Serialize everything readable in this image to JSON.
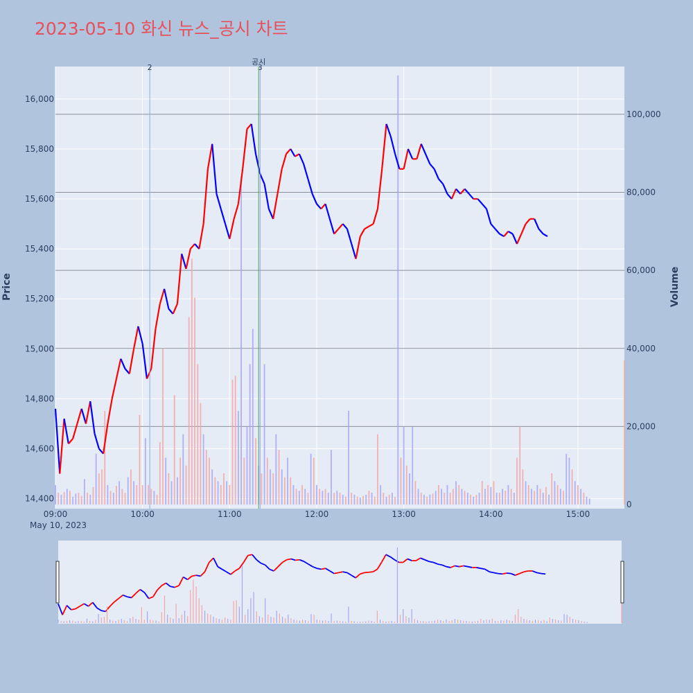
{
  "title": "2023-05-10 화신 뉴스_공시 차트",
  "colors": {
    "background": "#b0c4de",
    "plot_bg": "#e5ecf6",
    "up": "#ff0000",
    "down": "#0000ff",
    "vol_up": "#f4a6a6",
    "vol_down": "#a6a6f4",
    "title": "#e8505b",
    "news_line": "#8fa8e8",
    "disclosure_line": "#5aa05a"
  },
  "chart_data": {
    "type": "candlestick",
    "title": "2023-05-10 화신 뉴스_공시 차트",
    "xlabel": "",
    "ylabel": "Price",
    "y2label": "Volume",
    "date_label": "May 10, 2023",
    "x_ticks": [
      "09:00",
      "10:00",
      "11:00",
      "12:00",
      "13:00",
      "14:00",
      "15:00"
    ],
    "price_ticks": [
      14400,
      14600,
      14800,
      15000,
      15200,
      15400,
      15600,
      15800,
      16000
    ],
    "price_tick_labels": [
      "14,400",
      "14,600",
      "14,800",
      "15,000",
      "15,200",
      "15,400",
      "15,600",
      "15,800",
      "16,000"
    ],
    "volume_ticks": [
      0,
      20000,
      40000,
      60000,
      80000,
      100000
    ],
    "volume_tick_labels": [
      "0",
      "20,000",
      "40,000",
      "60,000",
      "80,000",
      "100,000"
    ],
    "price_range": [
      14360,
      16130
    ],
    "volume_range": [
      0,
      111000
    ],
    "time_range": [
      "09:00",
      "15:32"
    ],
    "grid": true,
    "price_path": [
      [
        "09:00",
        14760
      ],
      [
        "09:03",
        14500
      ],
      [
        "09:06",
        14720
      ],
      [
        "09:09",
        14620
      ],
      [
        "09:12",
        14640
      ],
      [
        "09:15",
        14700
      ],
      [
        "09:18",
        14760
      ],
      [
        "09:21",
        14700
      ],
      [
        "09:24",
        14790
      ],
      [
        "09:27",
        14660
      ],
      [
        "09:30",
        14600
      ],
      [
        "09:33",
        14580
      ],
      [
        "09:36",
        14700
      ],
      [
        "09:39",
        14800
      ],
      [
        "09:42",
        14880
      ],
      [
        "09:45",
        14960
      ],
      [
        "09:48",
        14920
      ],
      [
        "09:51",
        14900
      ],
      [
        "09:54",
        15000
      ],
      [
        "09:57",
        15090
      ],
      [
        "10:00",
        15020
      ],
      [
        "10:03",
        14880
      ],
      [
        "10:06",
        14920
      ],
      [
        "10:09",
        15080
      ],
      [
        "10:12",
        15180
      ],
      [
        "10:15",
        15240
      ],
      [
        "10:18",
        15160
      ],
      [
        "10:21",
        15140
      ],
      [
        "10:24",
        15180
      ],
      [
        "10:27",
        15380
      ],
      [
        "10:30",
        15320
      ],
      [
        "10:33",
        15400
      ],
      [
        "10:36",
        15420
      ],
      [
        "10:39",
        15400
      ],
      [
        "10:42",
        15500
      ],
      [
        "10:45",
        15720
      ],
      [
        "10:48",
        15820
      ],
      [
        "10:51",
        15620
      ],
      [
        "10:54",
        15560
      ],
      [
        "10:57",
        15500
      ],
      [
        "11:00",
        15440
      ],
      [
        "11:03",
        15520
      ],
      [
        "11:06",
        15580
      ],
      [
        "11:09",
        15720
      ],
      [
        "11:12",
        15880
      ],
      [
        "11:15",
        15900
      ],
      [
        "11:18",
        15780
      ],
      [
        "11:21",
        15700
      ],
      [
        "11:24",
        15660
      ],
      [
        "11:27",
        15560
      ],
      [
        "11:30",
        15520
      ],
      [
        "11:33",
        15620
      ],
      [
        "11:36",
        15720
      ],
      [
        "11:39",
        15780
      ],
      [
        "11:42",
        15800
      ],
      [
        "11:45",
        15770
      ],
      [
        "11:48",
        15780
      ],
      [
        "11:51",
        15740
      ],
      [
        "11:54",
        15680
      ],
      [
        "11:57",
        15620
      ],
      [
        "12:00",
        15580
      ],
      [
        "12:03",
        15560
      ],
      [
        "12:06",
        15580
      ],
      [
        "12:09",
        15520
      ],
      [
        "12:12",
        15460
      ],
      [
        "12:15",
        15480
      ],
      [
        "12:18",
        15500
      ],
      [
        "12:21",
        15480
      ],
      [
        "12:24",
        15420
      ],
      [
        "12:27",
        15360
      ],
      [
        "12:30",
        15450
      ],
      [
        "12:33",
        15480
      ],
      [
        "12:36",
        15490
      ],
      [
        "12:39",
        15500
      ],
      [
        "12:42",
        15560
      ],
      [
        "12:45",
        15720
      ],
      [
        "12:48",
        15900
      ],
      [
        "12:51",
        15850
      ],
      [
        "12:54",
        15780
      ],
      [
        "12:57",
        15720
      ],
      [
        "13:00",
        15720
      ],
      [
        "13:03",
        15800
      ],
      [
        "13:06",
        15760
      ],
      [
        "13:09",
        15760
      ],
      [
        "13:12",
        15820
      ],
      [
        "13:15",
        15780
      ],
      [
        "13:18",
        15740
      ],
      [
        "13:21",
        15720
      ],
      [
        "13:24",
        15680
      ],
      [
        "13:27",
        15660
      ],
      [
        "13:30",
        15620
      ],
      [
        "13:33",
        15600
      ],
      [
        "13:36",
        15640
      ],
      [
        "13:39",
        15620
      ],
      [
        "13:42",
        15640
      ],
      [
        "13:45",
        15620
      ],
      [
        "13:48",
        15600
      ],
      [
        "13:51",
        15600
      ],
      [
        "13:54",
        15580
      ],
      [
        "13:57",
        15560
      ],
      [
        "14:00",
        15500
      ],
      [
        "14:03",
        15480
      ],
      [
        "14:06",
        15460
      ],
      [
        "14:09",
        15450
      ],
      [
        "14:12",
        15470
      ],
      [
        "14:15",
        15460
      ],
      [
        "14:18",
        15420
      ],
      [
        "14:21",
        15460
      ],
      [
        "14:24",
        15500
      ],
      [
        "14:27",
        15520
      ],
      [
        "14:30",
        15520
      ],
      [
        "14:33",
        15480
      ],
      [
        "14:36",
        15460
      ],
      [
        "14:39",
        15450
      ]
    ],
    "volume_bars": [
      [
        0,
        5000,
        0
      ],
      [
        2,
        3000,
        1
      ],
      [
        4,
        2500,
        0
      ],
      [
        6,
        3200,
        1
      ],
      [
        8,
        4000,
        0
      ],
      [
        10,
        3500,
        1
      ],
      [
        12,
        2000,
        0
      ],
      [
        14,
        2800,
        0
      ],
      [
        16,
        3000,
        1
      ],
      [
        18,
        2200,
        1
      ],
      [
        20,
        6500,
        0
      ],
      [
        22,
        3000,
        1
      ],
      [
        24,
        2500,
        0
      ],
      [
        26,
        4500,
        1
      ],
      [
        28,
        13000,
        0
      ],
      [
        30,
        8000,
        1
      ],
      [
        32,
        9000,
        1
      ],
      [
        34,
        24000,
        1
      ],
      [
        36,
        5000,
        0
      ],
      [
        38,
        3500,
        1
      ],
      [
        40,
        3000,
        0
      ],
      [
        42,
        4800,
        1
      ],
      [
        44,
        6000,
        0
      ],
      [
        46,
        4000,
        1
      ],
      [
        48,
        3000,
        1
      ],
      [
        50,
        7000,
        0
      ],
      [
        52,
        9000,
        1
      ],
      [
        54,
        6000,
        0
      ],
      [
        56,
        5000,
        1
      ],
      [
        58,
        23000,
        1
      ],
      [
        60,
        5000,
        1
      ],
      [
        62,
        17000,
        0
      ],
      [
        64,
        5000,
        1
      ],
      [
        66,
        4000,
        1
      ],
      [
        68,
        3500,
        0
      ],
      [
        70,
        2500,
        1
      ],
      [
        72,
        16000,
        1
      ],
      [
        74,
        40000,
        1
      ],
      [
        76,
        12000,
        0
      ],
      [
        78,
        8000,
        1
      ],
      [
        80,
        6000,
        0
      ],
      [
        82,
        28000,
        1
      ],
      [
        84,
        7000,
        0
      ],
      [
        86,
        12000,
        1
      ],
      [
        88,
        18000,
        0
      ],
      [
        90,
        10000,
        1
      ],
      [
        92,
        48000,
        1
      ],
      [
        94,
        63000,
        1
      ],
      [
        96,
        53000,
        1
      ],
      [
        98,
        36000,
        1
      ],
      [
        100,
        26000,
        1
      ],
      [
        102,
        18000,
        0
      ],
      [
        104,
        14000,
        1
      ],
      [
        106,
        12000,
        1
      ],
      [
        108,
        9000,
        0
      ],
      [
        110,
        7000,
        1
      ],
      [
        112,
        6000,
        0
      ],
      [
        114,
        5000,
        1
      ],
      [
        116,
        8000,
        1
      ],
      [
        118,
        6000,
        0
      ],
      [
        120,
        5000,
        1
      ],
      [
        122,
        32000,
        1
      ],
      [
        124,
        33000,
        1
      ],
      [
        126,
        24000,
        0
      ],
      [
        128,
        84000,
        0
      ],
      [
        130,
        12000,
        1
      ],
      [
        132,
        20000,
        0
      ],
      [
        134,
        36000,
        0
      ],
      [
        136,
        45000,
        0
      ],
      [
        138,
        17000,
        1
      ],
      [
        140,
        10000,
        0
      ],
      [
        142,
        8000,
        1
      ],
      [
        144,
        36000,
        0
      ],
      [
        146,
        12000,
        1
      ],
      [
        148,
        9000,
        0
      ],
      [
        150,
        8000,
        1
      ],
      [
        152,
        18000,
        0
      ],
      [
        154,
        14000,
        1
      ],
      [
        156,
        9000,
        0
      ],
      [
        158,
        7000,
        1
      ],
      [
        160,
        12000,
        0
      ],
      [
        162,
        7000,
        1
      ],
      [
        164,
        5000,
        0
      ],
      [
        166,
        4000,
        1
      ],
      [
        168,
        3500,
        0
      ],
      [
        170,
        5000,
        1
      ],
      [
        172,
        4000,
        0
      ],
      [
        174,
        3000,
        1
      ],
      [
        176,
        13000,
        0
      ],
      [
        178,
        12000,
        1
      ],
      [
        180,
        5000,
        0
      ],
      [
        182,
        4000,
        1
      ],
      [
        184,
        3500,
        0
      ],
      [
        186,
        4000,
        1
      ],
      [
        188,
        3000,
        0
      ],
      [
        190,
        14000,
        0
      ],
      [
        192,
        3000,
        1
      ],
      [
        194,
        3500,
        0
      ],
      [
        196,
        3000,
        1
      ],
      [
        198,
        2500,
        0
      ],
      [
        200,
        2000,
        1
      ],
      [
        202,
        24000,
        0
      ],
      [
        204,
        3000,
        1
      ],
      [
        206,
        2500,
        0
      ],
      [
        208,
        2000,
        1
      ],
      [
        210,
        1800,
        0
      ],
      [
        212,
        2200,
        1
      ],
      [
        214,
        2500,
        0
      ],
      [
        216,
        3500,
        1
      ],
      [
        218,
        3000,
        0
      ],
      [
        220,
        2000,
        1
      ],
      [
        222,
        18000,
        1
      ],
      [
        224,
        5000,
        0
      ],
      [
        226,
        3000,
        1
      ],
      [
        228,
        2000,
        0
      ],
      [
        230,
        2500,
        1
      ],
      [
        232,
        3000,
        0
      ],
      [
        234,
        2000,
        1
      ],
      [
        236,
        110000,
        0
      ],
      [
        238,
        12000,
        1
      ],
      [
        240,
        20000,
        0
      ],
      [
        242,
        10000,
        1
      ],
      [
        244,
        8000,
        0
      ],
      [
        246,
        20000,
        0
      ],
      [
        248,
        6000,
        1
      ],
      [
        250,
        4000,
        0
      ],
      [
        252,
        3000,
        1
      ],
      [
        254,
        2500,
        0
      ],
      [
        256,
        2000,
        1
      ],
      [
        258,
        2500,
        0
      ],
      [
        260,
        2800,
        1
      ],
      [
        262,
        3500,
        0
      ],
      [
        264,
        5000,
        1
      ],
      [
        266,
        4000,
        0
      ],
      [
        268,
        3000,
        1
      ],
      [
        270,
        5000,
        0
      ],
      [
        272,
        3000,
        1
      ],
      [
        274,
        4000,
        1
      ],
      [
        276,
        6000,
        0
      ],
      [
        278,
        5000,
        1
      ],
      [
        280,
        4000,
        0
      ],
      [
        282,
        3500,
        1
      ],
      [
        284,
        3000,
        0
      ],
      [
        286,
        2500,
        1
      ],
      [
        288,
        2000,
        0
      ],
      [
        290,
        2500,
        1
      ],
      [
        292,
        3000,
        0
      ],
      [
        294,
        6000,
        1
      ],
      [
        296,
        4000,
        0
      ],
      [
        298,
        5000,
        1
      ],
      [
        300,
        4500,
        0
      ],
      [
        302,
        6000,
        1
      ],
      [
        304,
        3000,
        0
      ],
      [
        306,
        3000,
        1
      ],
      [
        308,
        4000,
        0
      ],
      [
        310,
        3500,
        1
      ],
      [
        312,
        5000,
        0
      ],
      [
        314,
        4000,
        1
      ],
      [
        316,
        3000,
        0
      ],
      [
        318,
        12000,
        1
      ],
      [
        320,
        20000,
        1
      ],
      [
        322,
        9000,
        1
      ],
      [
        324,
        6000,
        0
      ],
      [
        326,
        5000,
        1
      ],
      [
        328,
        4000,
        0
      ],
      [
        330,
        3500,
        1
      ],
      [
        332,
        5000,
        0
      ],
      [
        334,
        4000,
        1
      ],
      [
        336,
        3000,
        0
      ],
      [
        338,
        4500,
        1
      ],
      [
        340,
        2500,
        0
      ],
      [
        342,
        8000,
        1
      ],
      [
        344,
        6000,
        0
      ],
      [
        346,
        5000,
        1
      ],
      [
        348,
        4000,
        0
      ],
      [
        350,
        3500,
        1
      ],
      [
        352,
        13000,
        0
      ],
      [
        354,
        12000,
        0
      ],
      [
        356,
        9000,
        1
      ],
      [
        358,
        6000,
        0
      ],
      [
        360,
        5000,
        1
      ],
      [
        362,
        4000,
        0
      ],
      [
        364,
        3000,
        1
      ],
      [
        366,
        2000,
        0
      ],
      [
        368,
        1500,
        0
      ],
      [
        392,
        37000,
        1
      ]
    ],
    "annotations": [
      {
        "label": "2",
        "time": "10:05",
        "kind": "news"
      },
      {
        "label": "3",
        "time": "11:21",
        "kind": "news"
      },
      {
        "label": "공시",
        "time": "11:20",
        "kind": "disclosure"
      }
    ]
  }
}
